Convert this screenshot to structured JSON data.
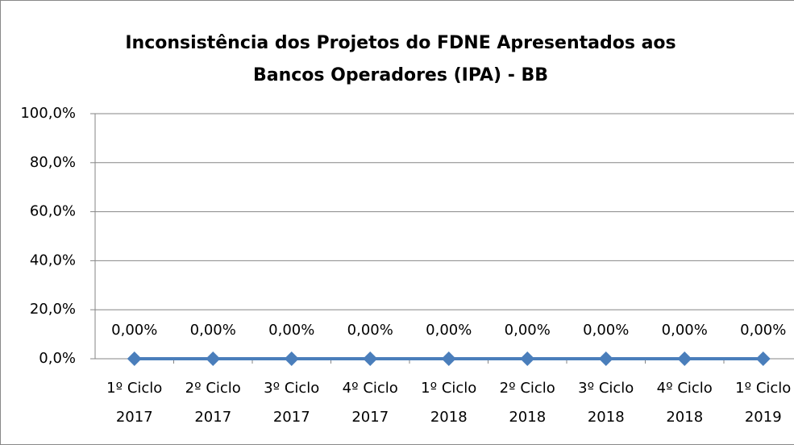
{
  "chart_data": {
    "type": "line",
    "title": [
      "Inconsistência dos Projetos do FDNE Apresentados aos",
      "Bancos Operadores (IPA) - BB"
    ],
    "categories": [
      "1º Ciclo 2017",
      "2º Ciclo 2017",
      "3º Ciclo 2017",
      "4º Ciclo 2017",
      "1º Ciclo 2018",
      "2º Ciclo 2018",
      "3º Ciclo 2018",
      "4º Ciclo 2018",
      "1º Ciclo 2019"
    ],
    "values": [
      0,
      0,
      0,
      0,
      0,
      0,
      0,
      0,
      0
    ],
    "value_labels": [
      "0,00%",
      "0,00%",
      "0,00%",
      "0,00%",
      "0,00%",
      "0,00%",
      "0,00%",
      "0,00%",
      "0,00%"
    ],
    "color": "#4a7ebb",
    "ylim": [
      0,
      100
    ],
    "yticks": [
      {
        "value": 0,
        "label": "0,0%"
      },
      {
        "value": 20,
        "label": "20,0%"
      },
      {
        "value": 40,
        "label": "40,0%"
      },
      {
        "value": 60,
        "label": "60,0%"
      },
      {
        "value": 80,
        "label": "80,0%"
      },
      {
        "value": 100,
        "label": "100,0%"
      }
    ],
    "grid": true
  }
}
